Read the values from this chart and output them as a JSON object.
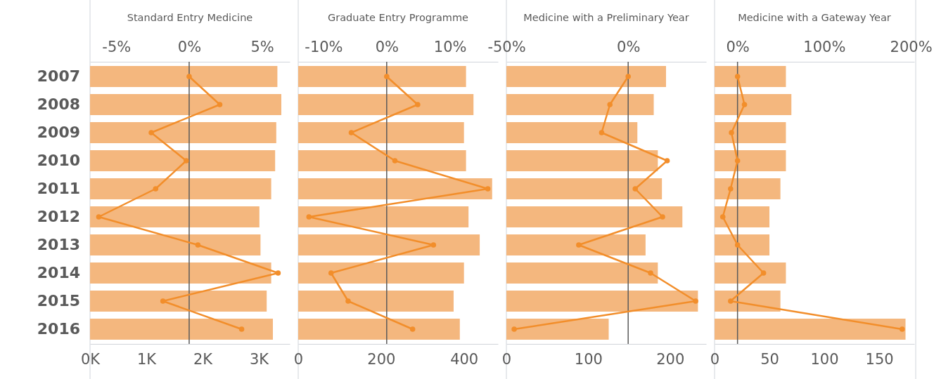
{
  "chart_data": [
    {
      "type": "bar",
      "orientation": "horizontal",
      "title": "Standard Entry Medicine",
      "marker": "circle",
      "categories": [
        "2007",
        "2008",
        "2009",
        "2010",
        "2011",
        "2012",
        "2013",
        "2014",
        "2015",
        "2016"
      ],
      "xlim": [
        0,
        3550
      ],
      "xticks": [
        {
          "value": 0,
          "label": "0K"
        },
        {
          "value": 1000,
          "label": "1K"
        },
        {
          "value": 2000,
          "label": "2K"
        },
        {
          "value": 3000,
          "label": "3K"
        }
      ],
      "x2lim": [
        -6.8,
        6.9
      ],
      "x2ticks": [
        {
          "value": -5,
          "label": "-5%"
        },
        {
          "value": 0,
          "label": "0%"
        },
        {
          "value": 5,
          "label": "5%"
        }
      ],
      "ref_lines": [
        {
          "axis": "x2",
          "value": 0,
          "color": "#5a5a5a"
        }
      ],
      "series": [
        {
          "color": "#f4b77e",
          "values": [
            3330,
            3400,
            3310,
            3290,
            3220,
            3010,
            3030,
            3220,
            3140,
            3250
          ]
        },
        {
          "type": "line",
          "axis": "x2",
          "color": "#f28e2b",
          "values": [
            0,
            2.1,
            -2.6,
            -0.2,
            -2.3,
            -6.2,
            0.6,
            6.1,
            -1.8,
            3.6
          ]
        }
      ]
    },
    {
      "type": "bar",
      "orientation": "horizontal",
      "title": "Graduate Entry Programme",
      "marker": "circle",
      "tick_labels": "x",
      "categories": [
        "2007",
        "2008",
        "2009",
        "2010",
        "2011",
        "2012",
        "2013",
        "2014",
        "2015",
        "2016"
      ],
      "xlim": [
        0,
        482
      ],
      "xticks": [
        0,
        200,
        400
      ],
      "x2lim": [
        -14,
        17.6
      ],
      "x2ticks": [
        {
          "value": -10,
          "label": "-10%"
        },
        {
          "value": 0,
          "label": "0%"
        },
        {
          "value": 10,
          "label": "10%"
        }
      ],
      "ref_lines": [
        {
          "axis": "x2",
          "value": 0,
          "color": "#5a5a5a"
        }
      ],
      "series": [
        {
          "color": "#f4b77e",
          "values": [
            405,
            423,
            400,
            405,
            468,
            411,
            438,
            400,
            375,
            390
          ]
        },
        {
          "type": "line",
          "axis": "x2",
          "color": "#f28e2b",
          "values": [
            0,
            4.9,
            -5.6,
            1.3,
            16.0,
            -12.3,
            7.4,
            -8.8,
            -6.1,
            4.1
          ]
        }
      ]
    },
    {
      "type": "bar",
      "orientation": "horizontal",
      "title": "Medicine with a Preliminary Year",
      "marker": "circle",
      "tick_labels": "x",
      "categories": [
        "2007",
        "2008",
        "2009",
        "2010",
        "2011",
        "2012",
        "2013",
        "2014",
        "2015",
        "2016"
      ],
      "xlim": [
        0,
        244
      ],
      "xticks": [
        0,
        100,
        200
      ],
      "x2lim": [
        -50,
        32
      ],
      "x2ticks": [
        {
          "value": -50,
          "label": "-50%"
        },
        {
          "value": 0,
          "label": "0%"
        }
      ],
      "ref_lines": [
        {
          "axis": "x2",
          "value": 0,
          "color": "#5a5a5a"
        }
      ],
      "series": [
        {
          "color": "#f4b77e",
          "values": [
            195,
            180,
            160,
            185,
            190,
            215,
            170,
            185,
            234,
            125
          ]
        },
        {
          "type": "line",
          "axis": "x2",
          "color": "#f28e2b",
          "values": [
            0,
            -7.5,
            -10.9,
            16.0,
            2.9,
            14.1,
            -20.3,
            9.2,
            27.7,
            -46.8
          ]
        }
      ]
    },
    {
      "type": "bar",
      "orientation": "horizontal",
      "title": "Medicine with a Gateway Year",
      "marker": "circle",
      "tick_labels": "x",
      "categories": [
        "2007",
        "2008",
        "2009",
        "2010",
        "2011",
        "2012",
        "2013",
        "2014",
        "2015",
        "2016"
      ],
      "xlim": [
        0,
        182
      ],
      "xticks": [
        0,
        50,
        100,
        150
      ],
      "x2lim": [
        -26.5,
        204
      ],
      "x2ticks": [
        {
          "value": 0,
          "label": "0%"
        },
        {
          "value": 100,
          "label": "100%"
        },
        {
          "value": 200,
          "label": "200%"
        }
      ],
      "ref_lines": [
        {
          "axis": "x2",
          "value": 0,
          "color": "#5a5a5a"
        }
      ],
      "series": [
        {
          "color": "#f4b77e",
          "values": [
            65,
            70,
            65,
            65,
            60,
            50,
            50,
            65,
            60,
            174
          ]
        },
        {
          "type": "line",
          "axis": "x2",
          "color": "#f28e2b",
          "values": [
            0,
            8,
            -7,
            0,
            -8,
            -17,
            0,
            30,
            -8,
            190
          ]
        }
      ]
    }
  ]
}
